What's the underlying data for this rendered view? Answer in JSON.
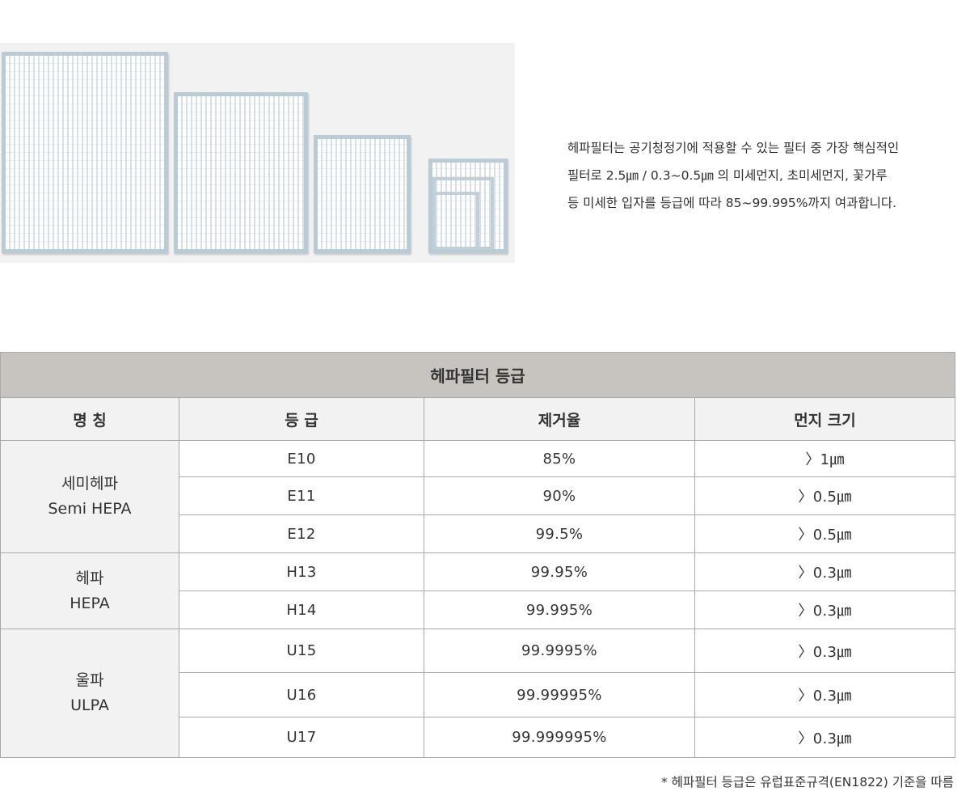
{
  "intro": {
    "lines": [
      "헤파필터는 공기청정기에 적용할 수 있는 필터 중  가장 핵심적인",
      "필터로 2.5㎛ / 0.3~0.5㎛ 의 미세먼지, 초미세먼지, 꽃가루",
      "등 미세한 입자를  등급에 따라 85~99.995%까지 여과합니다."
    ]
  },
  "table": {
    "title": "헤파필터 등급",
    "headers": [
      "명 칭",
      "등 급",
      "제거율",
      "먼지 크기"
    ],
    "groups": [
      {
        "name_ko": "세미헤파",
        "name_en": "Semi HEPA",
        "rows": [
          {
            "grade": "E10",
            "rate": "85%",
            "size": "〉1㎛"
          },
          {
            "grade": "E11",
            "rate": "90%",
            "size": "〉0.5㎛"
          },
          {
            "grade": "E12",
            "rate": "99.5%",
            "size": "〉0.5㎛"
          }
        ]
      },
      {
        "name_ko": "헤파",
        "name_en": "HEPA",
        "rows": [
          {
            "grade": "H13",
            "rate": "99.95%",
            "size": "〉0.3㎛"
          },
          {
            "grade": "H14",
            "rate": "99.995%",
            "size": "〉0.3㎛"
          }
        ]
      },
      {
        "name_ko": "울파",
        "name_en": "ULPA",
        "rows": [
          {
            "grade": "U15",
            "rate": "99.9995%",
            "size": "〉0.3㎛"
          },
          {
            "grade": "U16",
            "rate": "99.99995%",
            "size": "〉0.3㎛"
          },
          {
            "grade": "U17",
            "rate": "99.999995%",
            "size": "〉0.3㎛"
          }
        ]
      }
    ]
  },
  "footnote": "* 헤파필터 등급은 유럽표준규격(EN1822) 기준을 따름"
}
